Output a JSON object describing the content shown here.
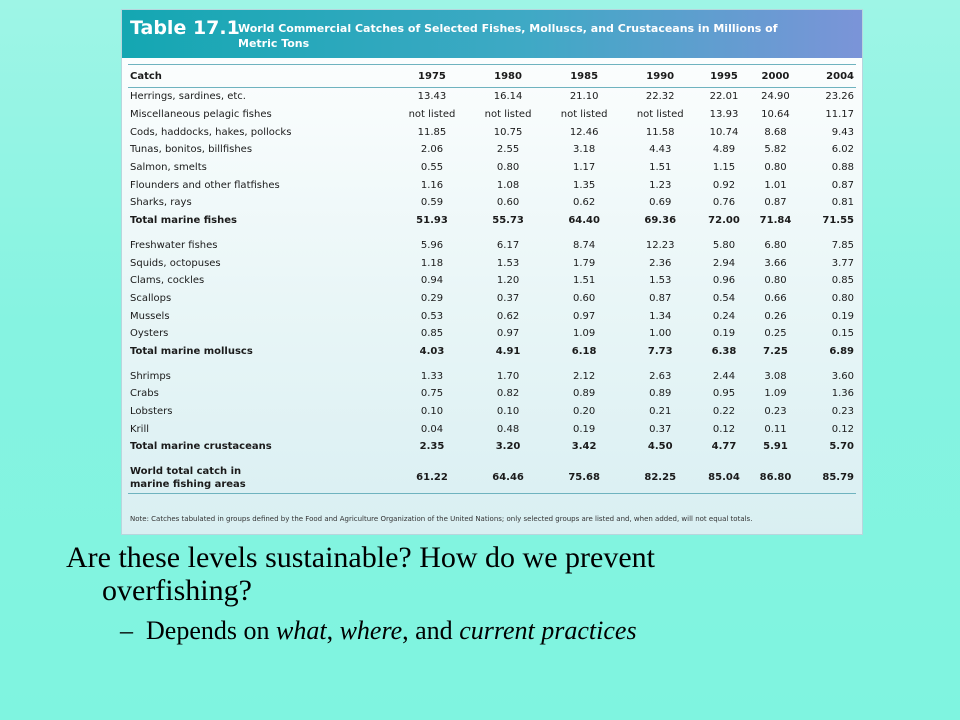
{
  "table": {
    "number": "Table 17.1",
    "title": "World Commercial Catches of Selected Fishes, Molluscs, and Crustaceans in Millions of Metric Tons",
    "columns": [
      "Catch",
      "1975",
      "1980",
      "1985",
      "1990",
      "1995",
      "2000",
      "2004"
    ],
    "rows": [
      {
        "name": "Herrings, sardines, etc.",
        "values": [
          "13.43",
          "16.14",
          "21.10",
          "22.32",
          "22.01",
          "24.90",
          "23.26"
        ]
      },
      {
        "name": "Miscellaneous pelagic fishes",
        "values": [
          "not listed",
          "not listed",
          "not listed",
          "not listed",
          "13.93",
          "10.64",
          "11.17"
        ]
      },
      {
        "name": "Cods, haddocks, hakes, pollocks",
        "values": [
          "11.85",
          "10.75",
          "12.46",
          "11.58",
          "10.74",
          "8.68",
          "9.43"
        ]
      },
      {
        "name": "Tunas, bonitos, billfishes",
        "values": [
          "2.06",
          "2.55",
          "3.18",
          "4.43",
          "4.89",
          "5.82",
          "6.02"
        ]
      },
      {
        "name": "Salmon, smelts",
        "values": [
          "0.55",
          "0.80",
          "1.17",
          "1.51",
          "1.15",
          "0.80",
          "0.88"
        ]
      },
      {
        "name": "Flounders and other flatfishes",
        "values": [
          "1.16",
          "1.08",
          "1.35",
          "1.23",
          "0.92",
          "1.01",
          "0.87"
        ]
      },
      {
        "name": "Sharks, rays",
        "values": [
          "0.59",
          "0.60",
          "0.62",
          "0.69",
          "0.76",
          "0.87",
          "0.81"
        ]
      },
      {
        "name": "Total marine fishes",
        "values": [
          "51.93",
          "55.73",
          "64.40",
          "69.36",
          "72.00",
          "71.84",
          "71.55"
        ],
        "total": true
      },
      {
        "spacer": true
      },
      {
        "name": "Freshwater fishes",
        "values": [
          "5.96",
          "6.17",
          "8.74",
          "12.23",
          "5.80",
          "6.80",
          "7.85"
        ]
      },
      {
        "name": "Squids, octopuses",
        "values": [
          "1.18",
          "1.53",
          "1.79",
          "2.36",
          "2.94",
          "3.66",
          "3.77"
        ]
      },
      {
        "name": "Clams, cockles",
        "values": [
          "0.94",
          "1.20",
          "1.51",
          "1.53",
          "0.96",
          "0.80",
          "0.85"
        ]
      },
      {
        "name": "Scallops",
        "values": [
          "0.29",
          "0.37",
          "0.60",
          "0.87",
          "0.54",
          "0.66",
          "0.80"
        ]
      },
      {
        "name": "Mussels",
        "values": [
          "0.53",
          "0.62",
          "0.97",
          "1.34",
          "0.24",
          "0.26",
          "0.19"
        ]
      },
      {
        "name": "Oysters",
        "values": [
          "0.85",
          "0.97",
          "1.09",
          "1.00",
          "0.19",
          "0.25",
          "0.15"
        ]
      },
      {
        "name": "Total marine molluscs",
        "values": [
          "4.03",
          "4.91",
          "6.18",
          "7.73",
          "6.38",
          "7.25",
          "6.89"
        ],
        "total": true
      },
      {
        "spacer": true
      },
      {
        "name": "Shrimps",
        "values": [
          "1.33",
          "1.70",
          "2.12",
          "2.63",
          "2.44",
          "3.08",
          "3.60"
        ]
      },
      {
        "name": "Crabs",
        "values": [
          "0.75",
          "0.82",
          "0.89",
          "0.89",
          "0.95",
          "1.09",
          "1.36"
        ]
      },
      {
        "name": "Lobsters",
        "values": [
          "0.10",
          "0.10",
          "0.20",
          "0.21",
          "0.22",
          "0.23",
          "0.23"
        ]
      },
      {
        "name": "Krill",
        "values": [
          "0.04",
          "0.48",
          "0.19",
          "0.37",
          "0.12",
          "0.11",
          "0.12"
        ]
      },
      {
        "name": "Total marine crustaceans",
        "values": [
          "2.35",
          "3.20",
          "3.42",
          "4.50",
          "4.77",
          "5.91",
          "5.70"
        ],
        "total": true
      },
      {
        "spacer": true
      },
      {
        "name_lines": [
          "World total catch in",
          "marine fishing areas"
        ],
        "values": [
          "61.22",
          "64.46",
          "75.68",
          "82.25",
          "85.04",
          "86.80",
          "85.79"
        ],
        "grand": true
      }
    ],
    "note": "Note: Catches tabulated in groups defined by the Food and Agriculture Organization of the United Nations; only selected groups are listed and, when added, will not equal totals."
  },
  "slide": {
    "question_line1": "Are these levels sustainable? How do we prevent",
    "question_line2": "overfishing?",
    "sub_dash": "–",
    "sub_prefix": "Depends on ",
    "sub_what": "what",
    "sub_sep1": ", ",
    "sub_where": "where",
    "sub_sep2": ", and ",
    "sub_current": "current practices"
  },
  "colors": {
    "background": "#86f3e1",
    "header_start": "#14a7b2",
    "header_end": "#7b94d8"
  }
}
